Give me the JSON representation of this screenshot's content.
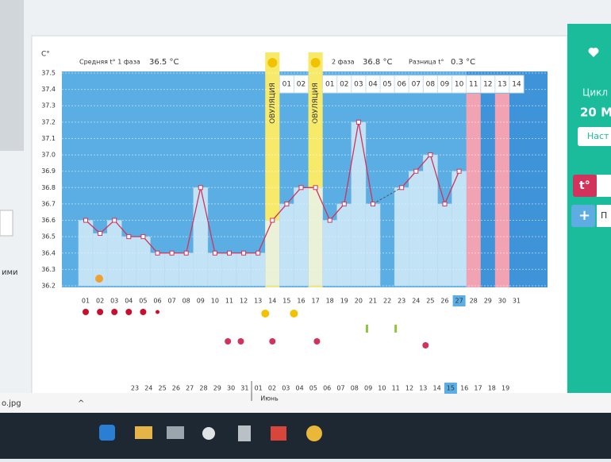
{
  "ui": {
    "left_label": "ими",
    "download_file": "o.jpg",
    "right_panel": {
      "cycle": "Цикл",
      "cycle_value": "20 М",
      "settings": "Наст",
      "temp_button": "t°",
      "add_button": "П"
    }
  },
  "chart_data": {
    "type": "line",
    "y_unit": "C°",
    "phase1_label": "Средняя t° 1 фаза",
    "phase1_value": "36.5 °C",
    "phase2_label": "2 фаза",
    "phase2_value": "36.8 °C",
    "diff_label": "Разница t°",
    "diff_value": "0.3 °C",
    "ovulation_labels": [
      "ОВУЛЯЦИЯ",
      "ОВУЛЯЦИЯ"
    ],
    "luteal_days": [
      "01",
      "02",
      "01",
      "02",
      "03",
      "04",
      "05",
      "06",
      "07",
      "08",
      "09",
      "10",
      "11",
      "12",
      "13",
      "14"
    ],
    "categories": [
      "01",
      "02",
      "03",
      "04",
      "05",
      "06",
      "07",
      "08",
      "09",
      "10",
      "11",
      "12",
      "13",
      "14",
      "15",
      "16",
      "17",
      "18",
      "19",
      "20",
      "21",
      "22",
      "23",
      "24",
      "25",
      "26",
      "27",
      "28",
      "29",
      "30",
      "31"
    ],
    "values": [
      36.6,
      36.52,
      36.6,
      36.5,
      36.5,
      36.4,
      36.4,
      36.4,
      36.8,
      36.4,
      36.4,
      36.4,
      36.4,
      36.6,
      36.7,
      36.8,
      36.8,
      36.6,
      36.7,
      37.2,
      36.7,
      null,
      36.8,
      36.9,
      37.0,
      36.7,
      36.9,
      null,
      null,
      null,
      null
    ],
    "color": "#d2335c",
    "ylim": [
      36.2,
      37.5
    ],
    "yticks": [
      36.2,
      36.3,
      36.4,
      36.5,
      36.6,
      36.7,
      36.8,
      36.9,
      {
        "value": 37,
        "label": "37.0"
      },
      37.1,
      37.2,
      37.3,
      37.4,
      37.5
    ],
    "calendar": [
      {
        "label": "23",
        "color": "#d2335c"
      },
      {
        "label": "24",
        "color": "#d2335c"
      },
      {
        "label": "25",
        "color": "#333"
      },
      {
        "label": "26",
        "color": "#333"
      },
      {
        "label": "27",
        "color": "#333"
      },
      {
        "label": "28",
        "color": "#333"
      },
      {
        "label": "29",
        "color": "#333"
      },
      {
        "label": "30",
        "color": "#d2335c"
      },
      {
        "label": "31",
        "color": "#d2335c"
      },
      {
        "label": "01",
        "color": "#333"
      },
      {
        "label": "02",
        "color": "#333"
      },
      {
        "label": "03",
        "color": "#333"
      },
      {
        "label": "04",
        "color": "#333"
      },
      {
        "label": "05",
        "color": "#333"
      },
      {
        "label": "06",
        "color": "#d2335c"
      },
      {
        "label": "07",
        "color": "#d2335c"
      },
      {
        "label": "08",
        "color": "#333"
      },
      {
        "label": "09",
        "color": "#333"
      },
      {
        "label": "10",
        "color": "#333"
      },
      {
        "label": "11",
        "color": "#333"
      },
      {
        "label": "12",
        "color": "#333"
      },
      {
        "label": "13",
        "color": "#d2335c"
      },
      {
        "label": "14",
        "color": "#d2335c"
      },
      {
        "label": "15",
        "color": "#333"
      },
      {
        "label": "16",
        "color": "#333"
      },
      {
        "label": "17",
        "color": "#333"
      },
      {
        "label": "18",
        "color": "#333"
      },
      {
        "label": "19",
        "color": "#333"
      }
    ],
    "month": "Июнь"
  }
}
